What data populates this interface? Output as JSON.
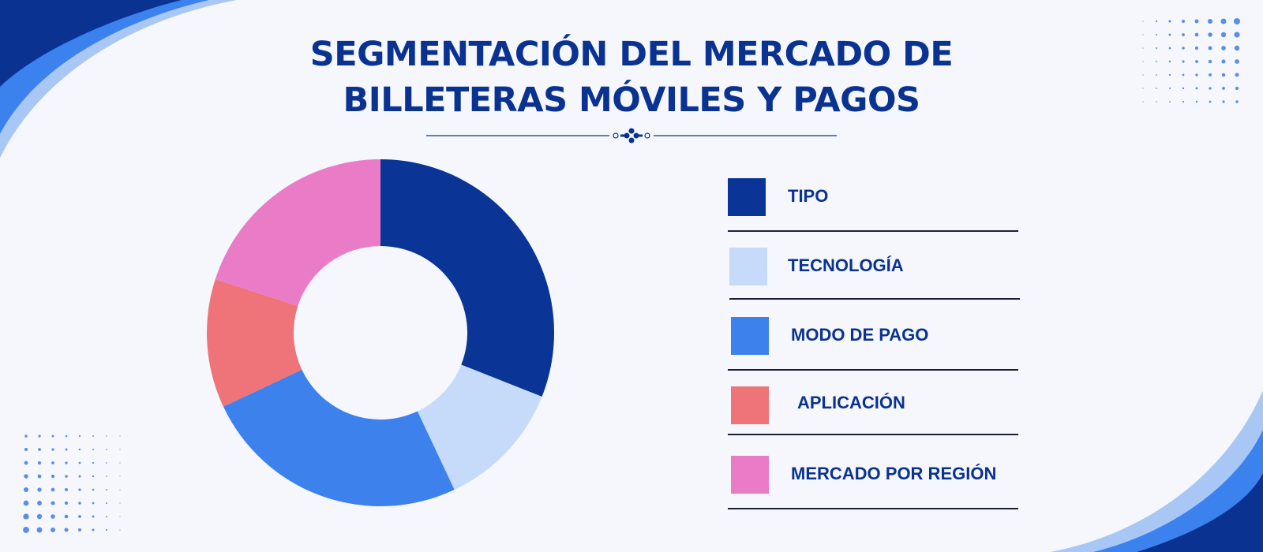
{
  "page": {
    "title_line1": "SEGMENTACIÓN DEL MERCADO DE",
    "title_line2": "BILLETERAS MÓVILES Y PAGOS"
  },
  "colors": {
    "accent_dark": "#0a3291",
    "accent_mid": "#3b82ef",
    "accent_light": "#a9c7f5",
    "background": "#f5f7fc"
  },
  "chart_data": {
    "type": "pie",
    "donut": true,
    "title": "SEGMENTACIÓN DEL MERCADO DE BILLETERAS MÓVILES Y PAGOS",
    "legend_position": "right",
    "categories": [
      "TIPO",
      "TECNOLOGÍA",
      "MODO DE PAGO",
      "APLICACIÓN",
      "MERCADO POR REGIÓN"
    ],
    "values": [
      31,
      12,
      25,
      12,
      20
    ],
    "colors": [
      "#0a3597",
      "#c6dafa",
      "#3d81ec",
      "#ef7479",
      "#ea7cc7"
    ]
  }
}
